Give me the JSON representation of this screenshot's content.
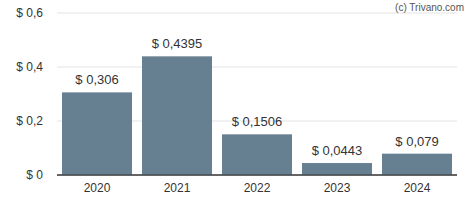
{
  "chart_data": {
    "type": "bar",
    "categories": [
      "2020",
      "2021",
      "2022",
      "2023",
      "2024"
    ],
    "values": [
      0.306,
      0.4395,
      0.1506,
      0.0443,
      0.079
    ],
    "value_labels": [
      "$ 0,306",
      "$ 0,4395",
      "$ 0,1506",
      "$ 0,0443",
      "$ 0,079"
    ],
    "data_labels": true,
    "color": "#667f91",
    "ylim": [
      0,
      0.6
    ],
    "yticks": [
      {
        "value": 0,
        "label": "$ 0"
      },
      {
        "value": 0.2,
        "label": "$ 0,2"
      },
      {
        "value": 0.4,
        "label": "$ 0,4"
      },
      {
        "value": 0.6,
        "label": "$ 0,6"
      }
    ],
    "grid": true,
    "annotations": [
      "(c) Trivano.com"
    ]
  }
}
